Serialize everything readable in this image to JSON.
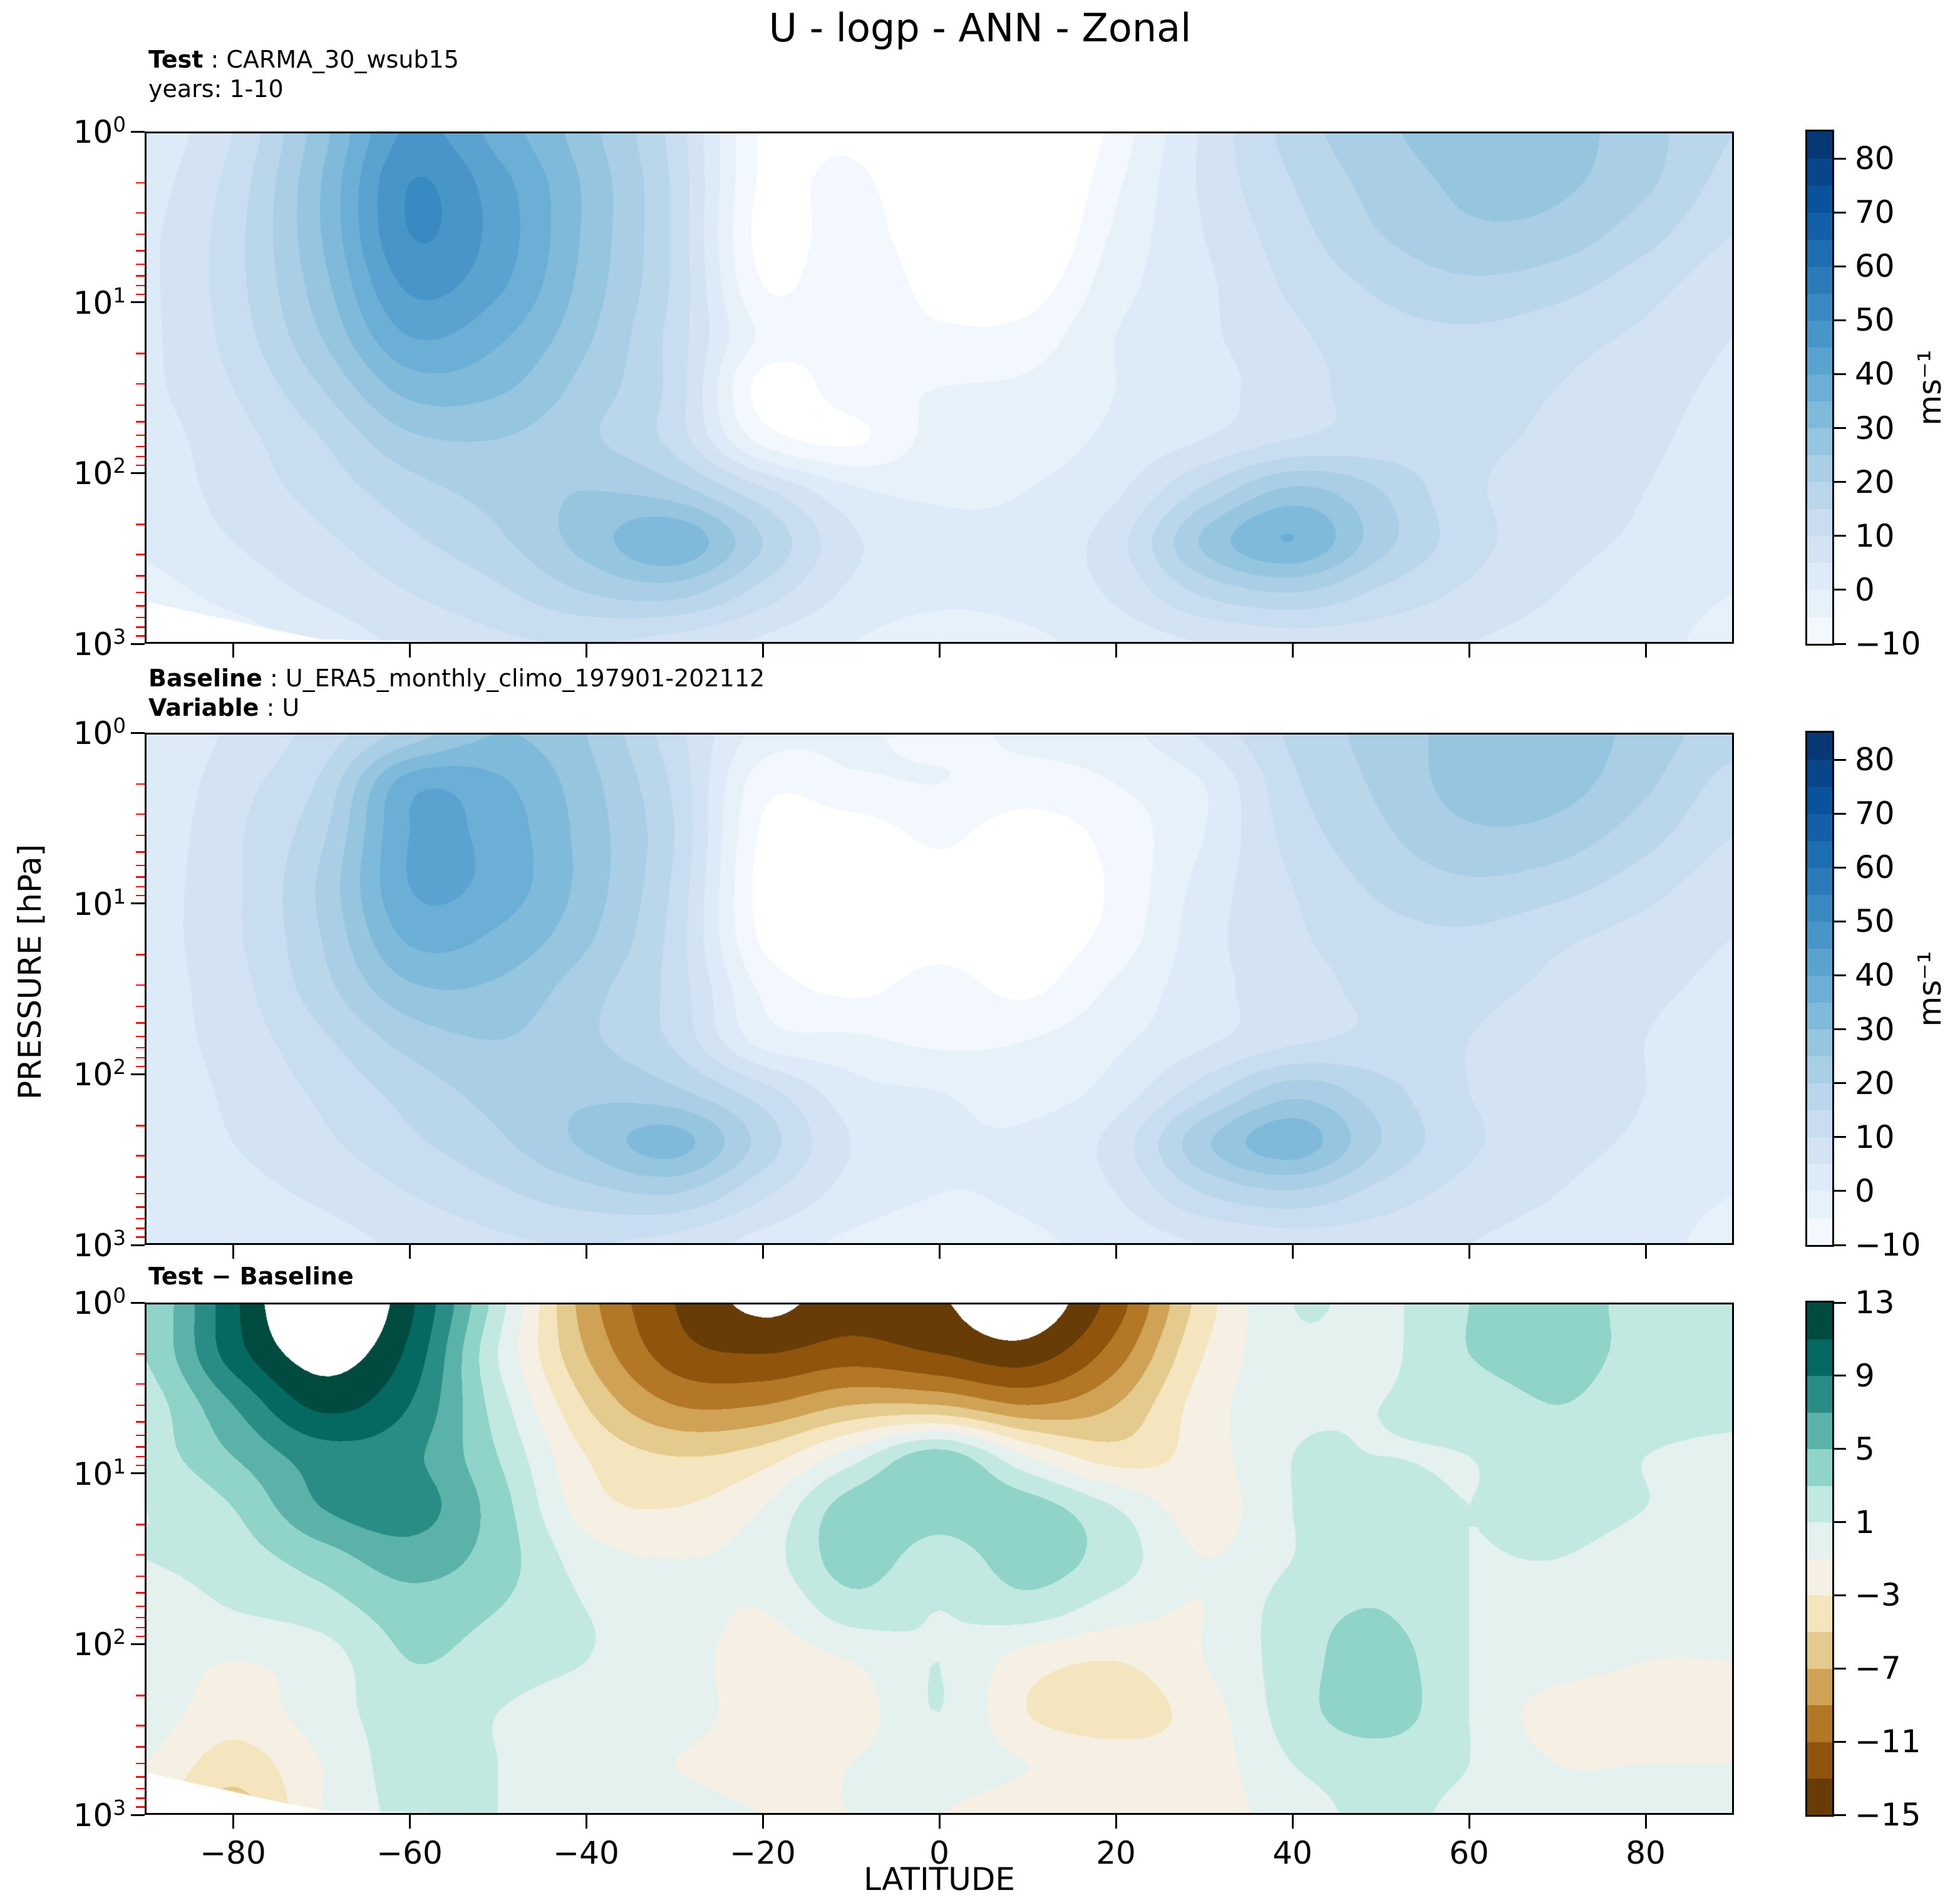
{
  "title": "U - logp - ANN - Zonal",
  "panels": [
    {
      "id": "test",
      "header": [
        {
          "bold": "Test",
          "rest": " : CARMA_30_wsub15"
        },
        {
          "bold": "",
          "rest": "years: 1-10"
        }
      ]
    },
    {
      "id": "baseline",
      "header": [
        {
          "bold": "Baseline",
          "rest": " : U_ERA5_monthly_climo_197901-202112"
        },
        {
          "bold": "Variable",
          "rest": " : U"
        }
      ]
    },
    {
      "id": "difference",
      "header": [
        {
          "bold": "Test − Baseline",
          "rest": ""
        }
      ]
    }
  ],
  "axis": {
    "x_label": "LATITUDE",
    "y_label": "PRESSURE [hPa]",
    "x_ticks": [
      -80,
      -60,
      -40,
      -20,
      0,
      20,
      40,
      60,
      80
    ],
    "y_tick_exponents": [
      0,
      1,
      2,
      3
    ],
    "y_scale": "log, 10^0 (top) to 10^3 (bottom) hPa"
  },
  "colorbars": [
    {
      "units": "ms⁻¹",
      "ticks": [
        80,
        70,
        60,
        50,
        40,
        30,
        20,
        10,
        0,
        -10
      ]
    },
    {
      "units": "ms⁻¹",
      "ticks": [
        80,
        70,
        60,
        50,
        40,
        30,
        20,
        10,
        0,
        -10
      ]
    },
    {
      "units": "",
      "ticks": [
        13,
        9,
        5,
        1,
        -3,
        -7,
        -11,
        -15
      ]
    }
  ],
  "colors": {
    "background": "#ffffff",
    "axis": "#000000",
    "minor_tick": "#ee1111",
    "out_of_range": "#ffffff",
    "blues": [
      "#f7fbff",
      "#deebf7",
      "#c6dbef",
      "#9ecae1",
      "#6baed6",
      "#4292c6",
      "#2171b5",
      "#08519c",
      "#08306b"
    ],
    "brbg": [
      "#543005",
      "#8c510a",
      "#bf812d",
      "#dfc27d",
      "#f6e8c3",
      "#f5f5f5",
      "#c7eae5",
      "#80cdc1",
      "#35978f",
      "#01665e",
      "#003c30"
    ]
  },
  "chart_data": [
    {
      "type": "contour",
      "name": "Test: CARMA_30_wsub15 (years 1-10), zonal-mean U",
      "units": "ms⁻¹",
      "colormap": "blues",
      "levels": [
        -10,
        85,
        5
      ],
      "lat": [
        -90,
        -80,
        -70,
        -60,
        -50,
        -40,
        -30,
        -20,
        -10,
        0,
        10,
        20,
        30,
        40,
        50,
        60,
        70,
        80,
        90
      ],
      "pressure_hPa": [
        1,
        2,
        4,
        8,
        16,
        32,
        63,
        126,
        251,
        501,
        1000
      ],
      "values": [
        [
          2,
          10,
          28,
          46,
          38,
          27,
          13,
          -11,
          -12,
          -20,
          -21,
          -8,
          6,
          17,
          24,
          27,
          27,
          22,
          15
        ],
        [
          3,
          12,
          30,
          50,
          42,
          29,
          14,
          -11,
          -8,
          -18,
          -19,
          -6,
          6,
          15,
          22,
          26,
          26,
          21,
          13
        ],
        [
          4,
          13,
          30,
          50,
          43,
          29,
          14,
          -12,
          -7,
          -15,
          -17,
          -4,
          5,
          13,
          20,
          24,
          23,
          17,
          10
        ],
        [
          4,
          13,
          28,
          46,
          41,
          28,
          14,
          -10,
          -6,
          -12,
          -13,
          -2,
          4,
          11,
          16,
          19,
          17,
          12,
          7
        ],
        [
          4,
          12,
          25,
          40,
          36,
          26,
          13,
          -6,
          -7,
          -9,
          -8,
          0,
          4,
          9,
          13,
          14,
          12,
          9,
          5
        ],
        [
          4,
          10,
          20,
          32,
          31,
          23,
          13,
          -12,
          -7,
          -5,
          -4,
          0,
          3,
          8,
          12,
          12,
          10,
          7,
          4
        ],
        [
          3,
          8,
          15,
          24,
          25,
          21,
          13,
          -7,
          -11,
          -3,
          -2,
          1,
          5,
          10,
          12,
          11,
          9,
          6,
          3
        ],
        [
          2,
          7,
          12,
          18,
          22,
          25,
          22,
          11,
          1,
          -1,
          0,
          4,
          16,
          26,
          20,
          11,
          8,
          5,
          2
        ],
        [
          1,
          5,
          9,
          14,
          19,
          27,
          34,
          20,
          6,
          2,
          2,
          8,
          26,
          35,
          22,
          12,
          7,
          4,
          1
        ],
        [
          -2,
          2,
          6,
          10,
          14,
          20,
          22,
          13,
          4,
          1,
          2,
          6,
          16,
          20,
          14,
          9,
          5,
          2,
          0
        ],
        [
          -6,
          -3,
          2,
          6,
          9,
          10,
          8,
          4,
          0,
          -2,
          -1,
          2,
          5,
          7,
          7,
          5,
          3,
          1,
          -1
        ]
      ],
      "surface_mask": [
        560,
        730,
        940,
        965,
        990,
        1030,
        100000,
        100000,
        100000,
        100000,
        100000,
        100000,
        100000,
        100000,
        100000,
        100000,
        100000,
        100000,
        100000
      ]
    },
    {
      "type": "contour",
      "name": "Baseline: U_ERA5_monthly_climo_197901-202112, zonal-mean U",
      "units": "ms⁻¹",
      "colormap": "blues",
      "levels": [
        -10,
        85,
        5
      ],
      "lat": [
        -90,
        -80,
        -70,
        -60,
        -50,
        -40,
        -30,
        -20,
        -10,
        0,
        10,
        20,
        30,
        40,
        50,
        60,
        70,
        80,
        90
      ],
      "pressure_hPa": [
        1,
        2,
        4,
        8,
        16,
        32,
        63,
        126,
        251,
        501,
        1000
      ],
      "values": [
        [
          0,
          6,
          12,
          22,
          30,
          25,
          12,
          -2,
          -4,
          -6,
          -4,
          -2,
          6,
          16,
          22,
          27,
          28,
          23,
          17
        ],
        [
          1,
          8,
          16,
          38,
          36,
          27,
          14,
          -8,
          -6,
          -5,
          -7,
          -5,
          0,
          14,
          21,
          27,
          27,
          21,
          13
        ],
        [
          2,
          9,
          19,
          40,
          38,
          28,
          15,
          -11,
          -13,
          -9,
          -13,
          -8,
          0,
          12,
          19,
          24,
          23,
          17,
          10
        ],
        [
          3,
          9,
          21,
          40,
          38,
          28,
          14,
          -12,
          -14,
          -12,
          -14,
          -9,
          2,
          10,
          16,
          19,
          17,
          12,
          7
        ],
        [
          3,
          9,
          20,
          36,
          34,
          26,
          13,
          -11,
          -13,
          -12,
          -13,
          -8,
          3,
          9,
          13,
          14,
          11,
          8,
          5
        ],
        [
          3,
          8,
          18,
          29,
          29,
          22,
          13,
          -6,
          -11,
          -8,
          -11,
          -4,
          3,
          8,
          11,
          11,
          9,
          6,
          4
        ],
        [
          3,
          7,
          14,
          22,
          25,
          21,
          14,
          -2,
          -4,
          -6,
          -5,
          -1,
          4,
          9,
          11,
          10,
          8,
          5,
          3
        ],
        [
          2,
          6,
          11,
          17,
          22,
          24,
          21,
          12,
          2,
          0,
          -2,
          2,
          13,
          23,
          17,
          10,
          8,
          5,
          2
        ],
        [
          1,
          5,
          9,
          14,
          19,
          26,
          32,
          18,
          5,
          1,
          1,
          7,
          24,
          33,
          20,
          11,
          7,
          4,
          1
        ],
        [
          0,
          3,
          6,
          10,
          14,
          18,
          20,
          11,
          3,
          0,
          1,
          5,
          15,
          19,
          13,
          8,
          5,
          2,
          0
        ],
        [
          0,
          1,
          3,
          6,
          9,
          10,
          8,
          3,
          -1,
          -2,
          -1,
          2,
          5,
          7,
          7,
          5,
          3,
          1,
          -1
        ]
      ],
      "surface_mask": null
    },
    {
      "type": "contour",
      "name": "Test − Baseline difference of zonal-mean U",
      "units": "ms⁻¹",
      "colormap": "brbg",
      "levels": [
        -15,
        13,
        2
      ],
      "lat": [
        -90,
        -80,
        -70,
        -60,
        -50,
        -40,
        -30,
        -20,
        -10,
        0,
        10,
        20,
        30,
        40,
        50,
        60,
        70,
        80,
        90
      ],
      "pressure_hPa": [
        1,
        2,
        4,
        8,
        16,
        32,
        63,
        126,
        251,
        501,
        1000
      ],
      "values": [
        [
          3,
          10.5,
          16,
          11.5,
          2,
          -8,
          -13,
          -15.5,
          -14,
          -14.8,
          -16.5,
          -12,
          -4,
          1,
          0.5,
          3,
          3.5,
          2.5,
          1.5
        ],
        [
          3,
          10,
          14,
          10.5,
          1,
          -7,
          -12,
          -13,
          -12,
          -13,
          -14,
          -10,
          -3,
          0.5,
          0.5,
          3,
          3.5,
          2.5,
          1.5
        ],
        [
          2,
          7,
          11.5,
          9,
          2,
          -5,
          -9,
          -9,
          -7,
          -7,
          -9,
          -7,
          -2,
          0.5,
          1,
          2,
          3,
          2,
          1.5
        ],
        [
          2,
          5,
          8,
          7.5,
          3,
          -3,
          -5,
          -4,
          0,
          4,
          -1,
          -4,
          -2,
          1,
          1,
          1,
          2,
          1,
          0.5
        ],
        [
          1,
          3,
          7,
          8,
          4,
          -2,
          -3,
          -1,
          4,
          4,
          4,
          1,
          -2,
          1,
          2,
          1,
          2,
          1,
          0
        ],
        [
          1,
          2,
          4,
          6,
          4,
          0,
          -1,
          0,
          4,
          2,
          4,
          2,
          -1,
          1,
          2.5,
          1,
          1,
          0,
          0
        ],
        [
          0,
          1,
          2,
          4,
          3,
          1,
          0,
          -1,
          2,
          1,
          2,
          0,
          -1,
          2,
          3,
          1,
          0,
          0,
          0
        ],
        [
          0,
          -1,
          0,
          3,
          2,
          1,
          0,
          -2,
          -1,
          1,
          -2,
          -3,
          -1,
          2,
          4,
          1,
          0,
          -1,
          -1
        ],
        [
          0,
          -2,
          0,
          2,
          1,
          0,
          0,
          -2,
          -2,
          1,
          -3,
          -4,
          -2,
          2,
          4,
          1,
          -2,
          -2,
          -1
        ],
        [
          -1,
          -4,
          -1,
          2,
          1,
          0,
          -1,
          -2,
          -1,
          0,
          -1,
          -2,
          -2,
          1,
          2,
          1,
          -1,
          -1,
          -1
        ],
        [
          -2,
          -6,
          -1,
          1.5,
          1,
          0,
          0,
          -1,
          -1,
          -1,
          -2,
          -2,
          -2,
          0,
          1.5,
          0.5,
          0,
          0,
          0
        ]
      ],
      "surface_mask": [
        560,
        730,
        940,
        965,
        990,
        1030,
        100000,
        100000,
        100000,
        100000,
        100000,
        100000,
        100000,
        100000,
        100000,
        100000,
        100000,
        100000,
        100000
      ]
    }
  ]
}
